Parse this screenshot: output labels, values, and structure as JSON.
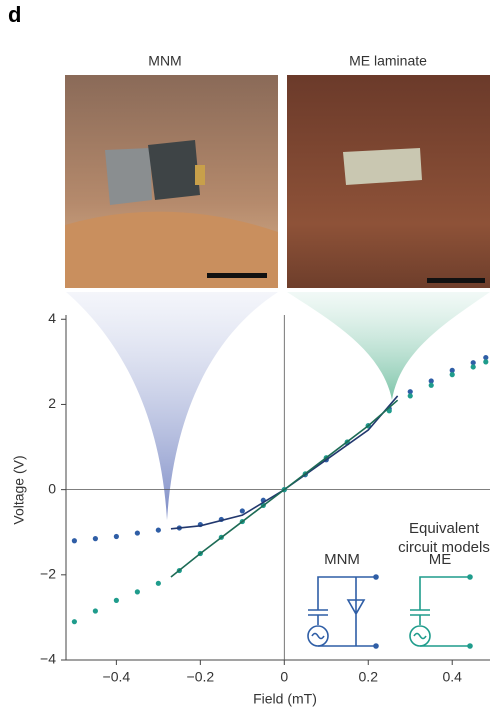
{
  "panel_label": "d",
  "photo_labels": [
    "MNM",
    "ME laminate"
  ],
  "chart_data": {
    "type": "scatter",
    "xlabel": "Field (mT)",
    "ylabel": "Voltage (V)",
    "annotation": "Equivalent\ncircuit models",
    "xlim": [
      -0.52,
      0.49
    ],
    "ylim": [
      -4,
      4.1
    ],
    "xticks": [
      {
        "value": -0.4,
        "label": "−0.4"
      },
      {
        "value": -0.2,
        "label": "−0.2"
      },
      0,
      0.2,
      0.4
    ],
    "yticks": [
      4,
      2,
      0,
      {
        "value": -2,
        "label": "−2"
      },
      {
        "value": -4,
        "label": "−4"
      }
    ],
    "series": [
      {
        "name": "MNM",
        "color": "#2f5ea6",
        "x": [
          -0.5,
          -0.45,
          -0.4,
          -0.35,
          -0.3,
          -0.25,
          -0.2,
          -0.15,
          -0.1,
          -0.05,
          0,
          0.05,
          0.1,
          0.15,
          0.2,
          0.25,
          0.3,
          0.35,
          0.4,
          0.45,
          0.48
        ],
        "values": [
          -1.2,
          -1.15,
          -1.1,
          -1.02,
          -0.95,
          -0.9,
          -0.82,
          -0.7,
          -0.5,
          -0.25,
          0,
          0.35,
          0.7,
          1.1,
          1.5,
          1.9,
          2.3,
          2.55,
          2.8,
          2.98,
          3.1
        ]
      },
      {
        "name": "ME",
        "color": "#1f9c8c",
        "x": [
          -0.5,
          -0.45,
          -0.4,
          -0.35,
          -0.3,
          -0.25,
          -0.2,
          -0.15,
          -0.1,
          -0.05,
          0,
          0.05,
          0.1,
          0.15,
          0.2,
          0.25,
          0.3,
          0.35,
          0.4,
          0.45,
          0.48
        ],
        "values": [
          -3.1,
          -2.85,
          -2.6,
          -2.4,
          -2.2,
          -1.9,
          -1.5,
          -1.12,
          -0.75,
          -0.37,
          0,
          0.37,
          0.75,
          1.12,
          1.5,
          1.85,
          2.2,
          2.45,
          2.7,
          2.88,
          3.0
        ]
      }
    ],
    "fits": [
      {
        "color": "#22386e",
        "x": [
          -0.27,
          -0.2,
          -0.1,
          0,
          0.1,
          0.2,
          0.27
        ],
        "values": [
          -0.92,
          -0.85,
          -0.6,
          0,
          0.7,
          1.4,
          2.2
        ]
      },
      {
        "color": "#1d6b55",
        "x": [
          -0.27,
          -0.2,
          -0.1,
          0,
          0.1,
          0.2,
          0.27
        ],
        "values": [
          -2.05,
          -1.5,
          -0.75,
          0,
          0.75,
          1.5,
          2.1
        ]
      }
    ]
  }
}
